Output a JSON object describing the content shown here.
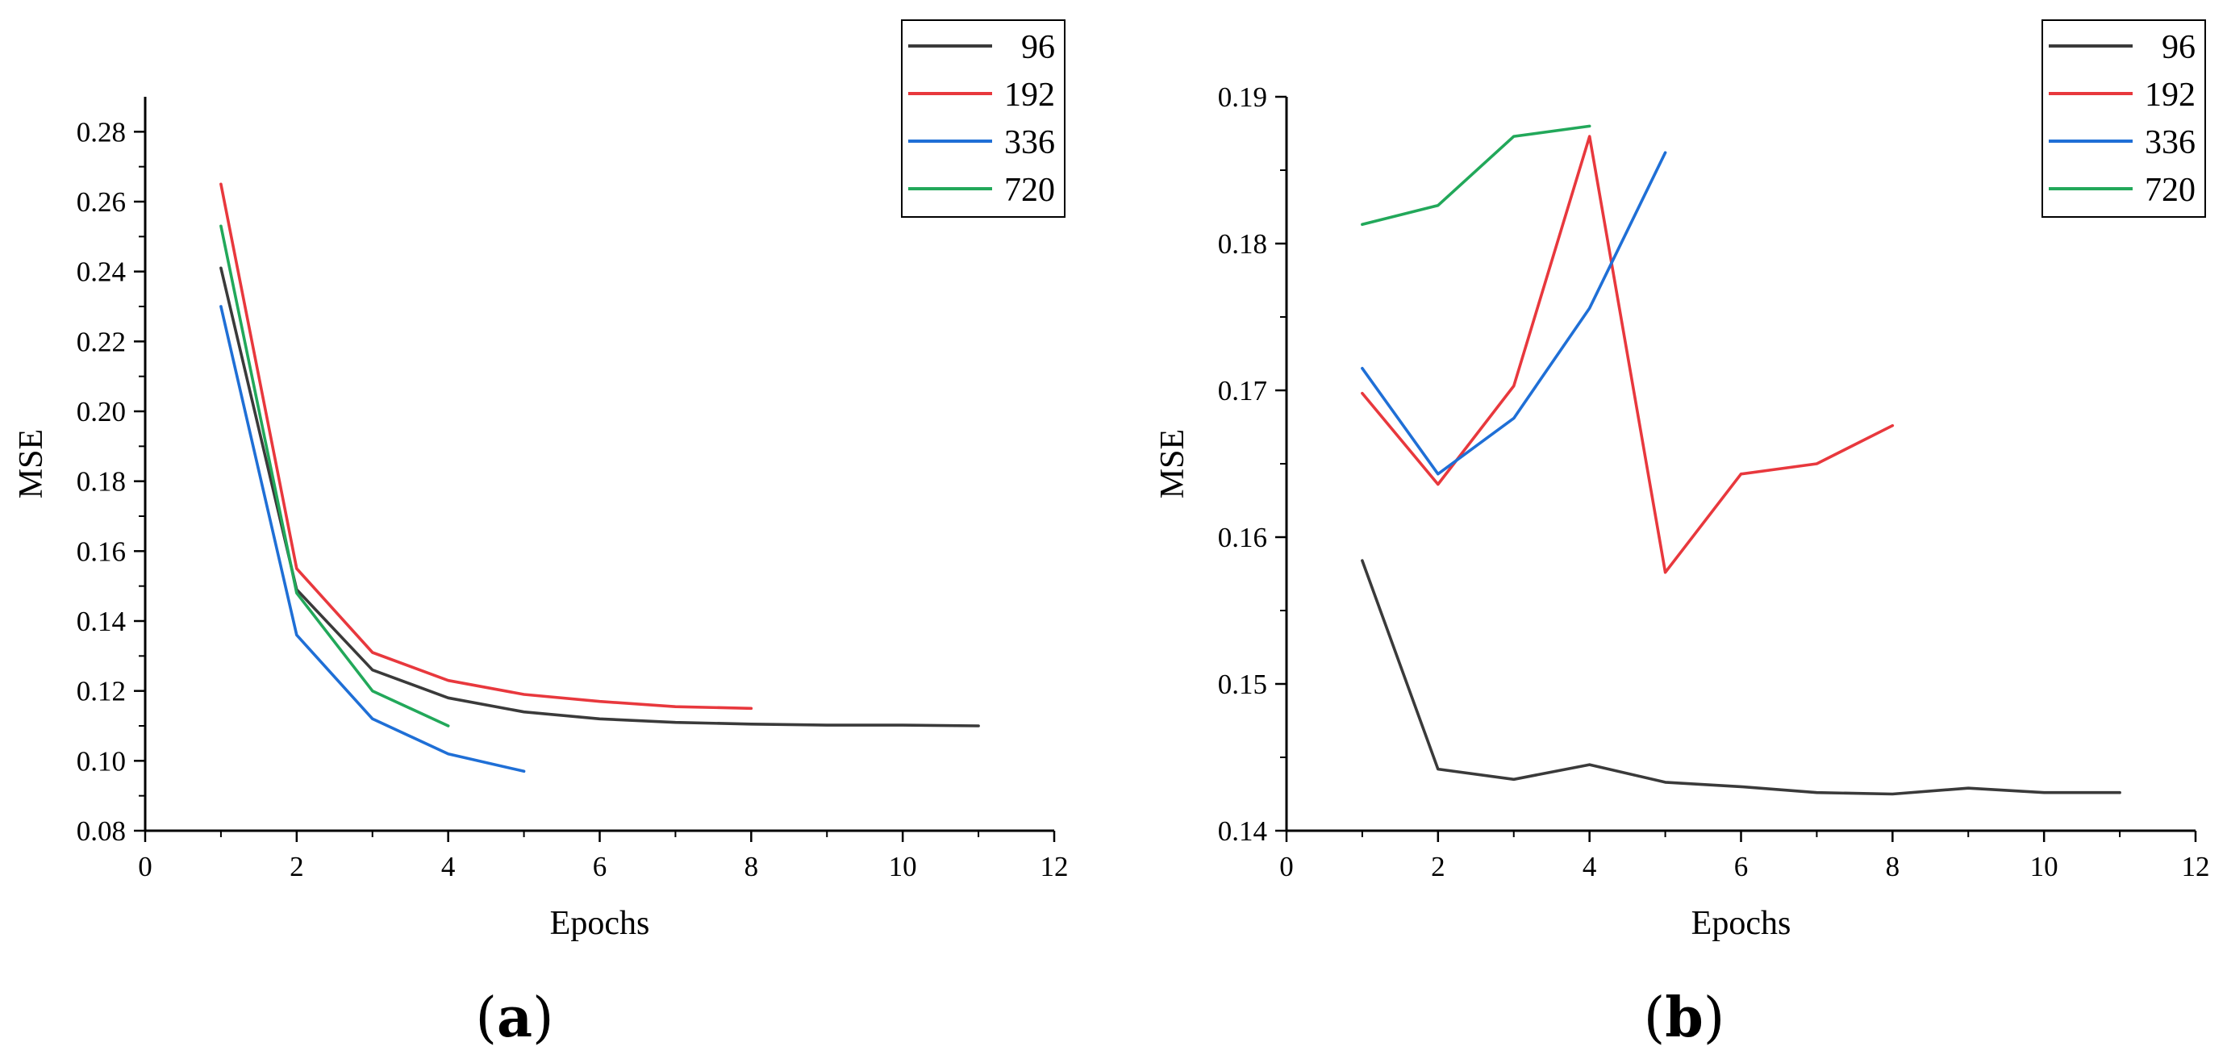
{
  "chart_data": [
    {
      "type": "line",
      "panel_label": "a",
      "title": "",
      "xlabel": "Epochs",
      "ylabel": "MSE",
      "xlim": [
        0,
        12
      ],
      "ylim": [
        0.08,
        0.29
      ],
      "xticks": [
        0,
        2,
        4,
        6,
        8,
        10,
        12
      ],
      "xtick_labels": [
        "0",
        "2",
        "4",
        "6",
        "8",
        "10",
        "12"
      ],
      "yticks": [
        0.08,
        0.1,
        0.12,
        0.14,
        0.16,
        0.18,
        0.2,
        0.22,
        0.24,
        0.26,
        0.28
      ],
      "ytick_labels": [
        "0.08",
        "0.10",
        "0.12",
        "0.14",
        "0.16",
        "0.18",
        "0.20",
        "0.22",
        "0.24",
        "0.26",
        "0.28"
      ],
      "grid": false,
      "legend_position": "top-right",
      "series": [
        {
          "name": "96",
          "color": "#3a3a3a",
          "x": [
            1,
            2,
            3,
            4,
            5,
            6,
            7,
            8,
            9,
            10,
            11
          ],
          "values": [
            0.241,
            0.149,
            0.126,
            0.118,
            0.114,
            0.112,
            0.111,
            0.1105,
            0.1102,
            0.1102,
            0.11
          ]
        },
        {
          "name": "192",
          "color": "#e8383d",
          "x": [
            1,
            2,
            3,
            4,
            5,
            6,
            7,
            8
          ],
          "values": [
            0.265,
            0.155,
            0.131,
            0.123,
            0.119,
            0.117,
            0.1155,
            0.115
          ]
        },
        {
          "name": "336",
          "color": "#1f6fd6",
          "x": [
            1,
            2,
            3,
            4,
            5
          ],
          "values": [
            0.23,
            0.136,
            0.112,
            0.102,
            0.097
          ]
        },
        {
          "name": "720",
          "color": "#22a85a",
          "x": [
            1,
            2,
            3,
            4
          ],
          "values": [
            0.253,
            0.148,
            0.12,
            0.11
          ]
        }
      ]
    },
    {
      "type": "line",
      "panel_label": "b",
      "title": "",
      "xlabel": "Epochs",
      "ylabel": "MSE",
      "xlim": [
        0,
        12
      ],
      "ylim": [
        0.14,
        0.19
      ],
      "xticks": [
        0,
        2,
        4,
        6,
        8,
        10,
        12
      ],
      "xtick_labels": [
        "0",
        "2",
        "4",
        "6",
        "8",
        "10",
        "12"
      ],
      "yticks": [
        0.14,
        0.15,
        0.16,
        0.17,
        0.18,
        0.19
      ],
      "ytick_labels": [
        "0.14",
        "0.15",
        "0.16",
        "0.17",
        "0.18",
        "0.19"
      ],
      "grid": false,
      "legend_position": "top-right",
      "series": [
        {
          "name": "96",
          "color": "#3a3a3a",
          "x": [
            1,
            2,
            3,
            4,
            5,
            6,
            7,
            8,
            9,
            10,
            11
          ],
          "values": [
            0.1584,
            0.1442,
            0.1435,
            0.1445,
            0.1433,
            0.143,
            0.1426,
            0.1425,
            0.1429,
            0.1426,
            0.1426
          ]
        },
        {
          "name": "192",
          "color": "#e8383d",
          "x": [
            1,
            2,
            3,
            4,
            5,
            6,
            7,
            8
          ],
          "values": [
            0.1698,
            0.1636,
            0.1703,
            0.1873,
            0.1576,
            0.1643,
            0.165,
            0.1676
          ]
        },
        {
          "name": "336",
          "color": "#1f6fd6",
          "x": [
            1,
            2,
            3,
            4,
            5
          ],
          "values": [
            0.1715,
            0.1643,
            0.1681,
            0.1756,
            0.1862
          ]
        },
        {
          "name": "720",
          "color": "#22a85a",
          "x": [
            1,
            2,
            3,
            4
          ],
          "values": [
            0.1813,
            0.1826,
            0.1873,
            0.188
          ]
        }
      ]
    }
  ]
}
